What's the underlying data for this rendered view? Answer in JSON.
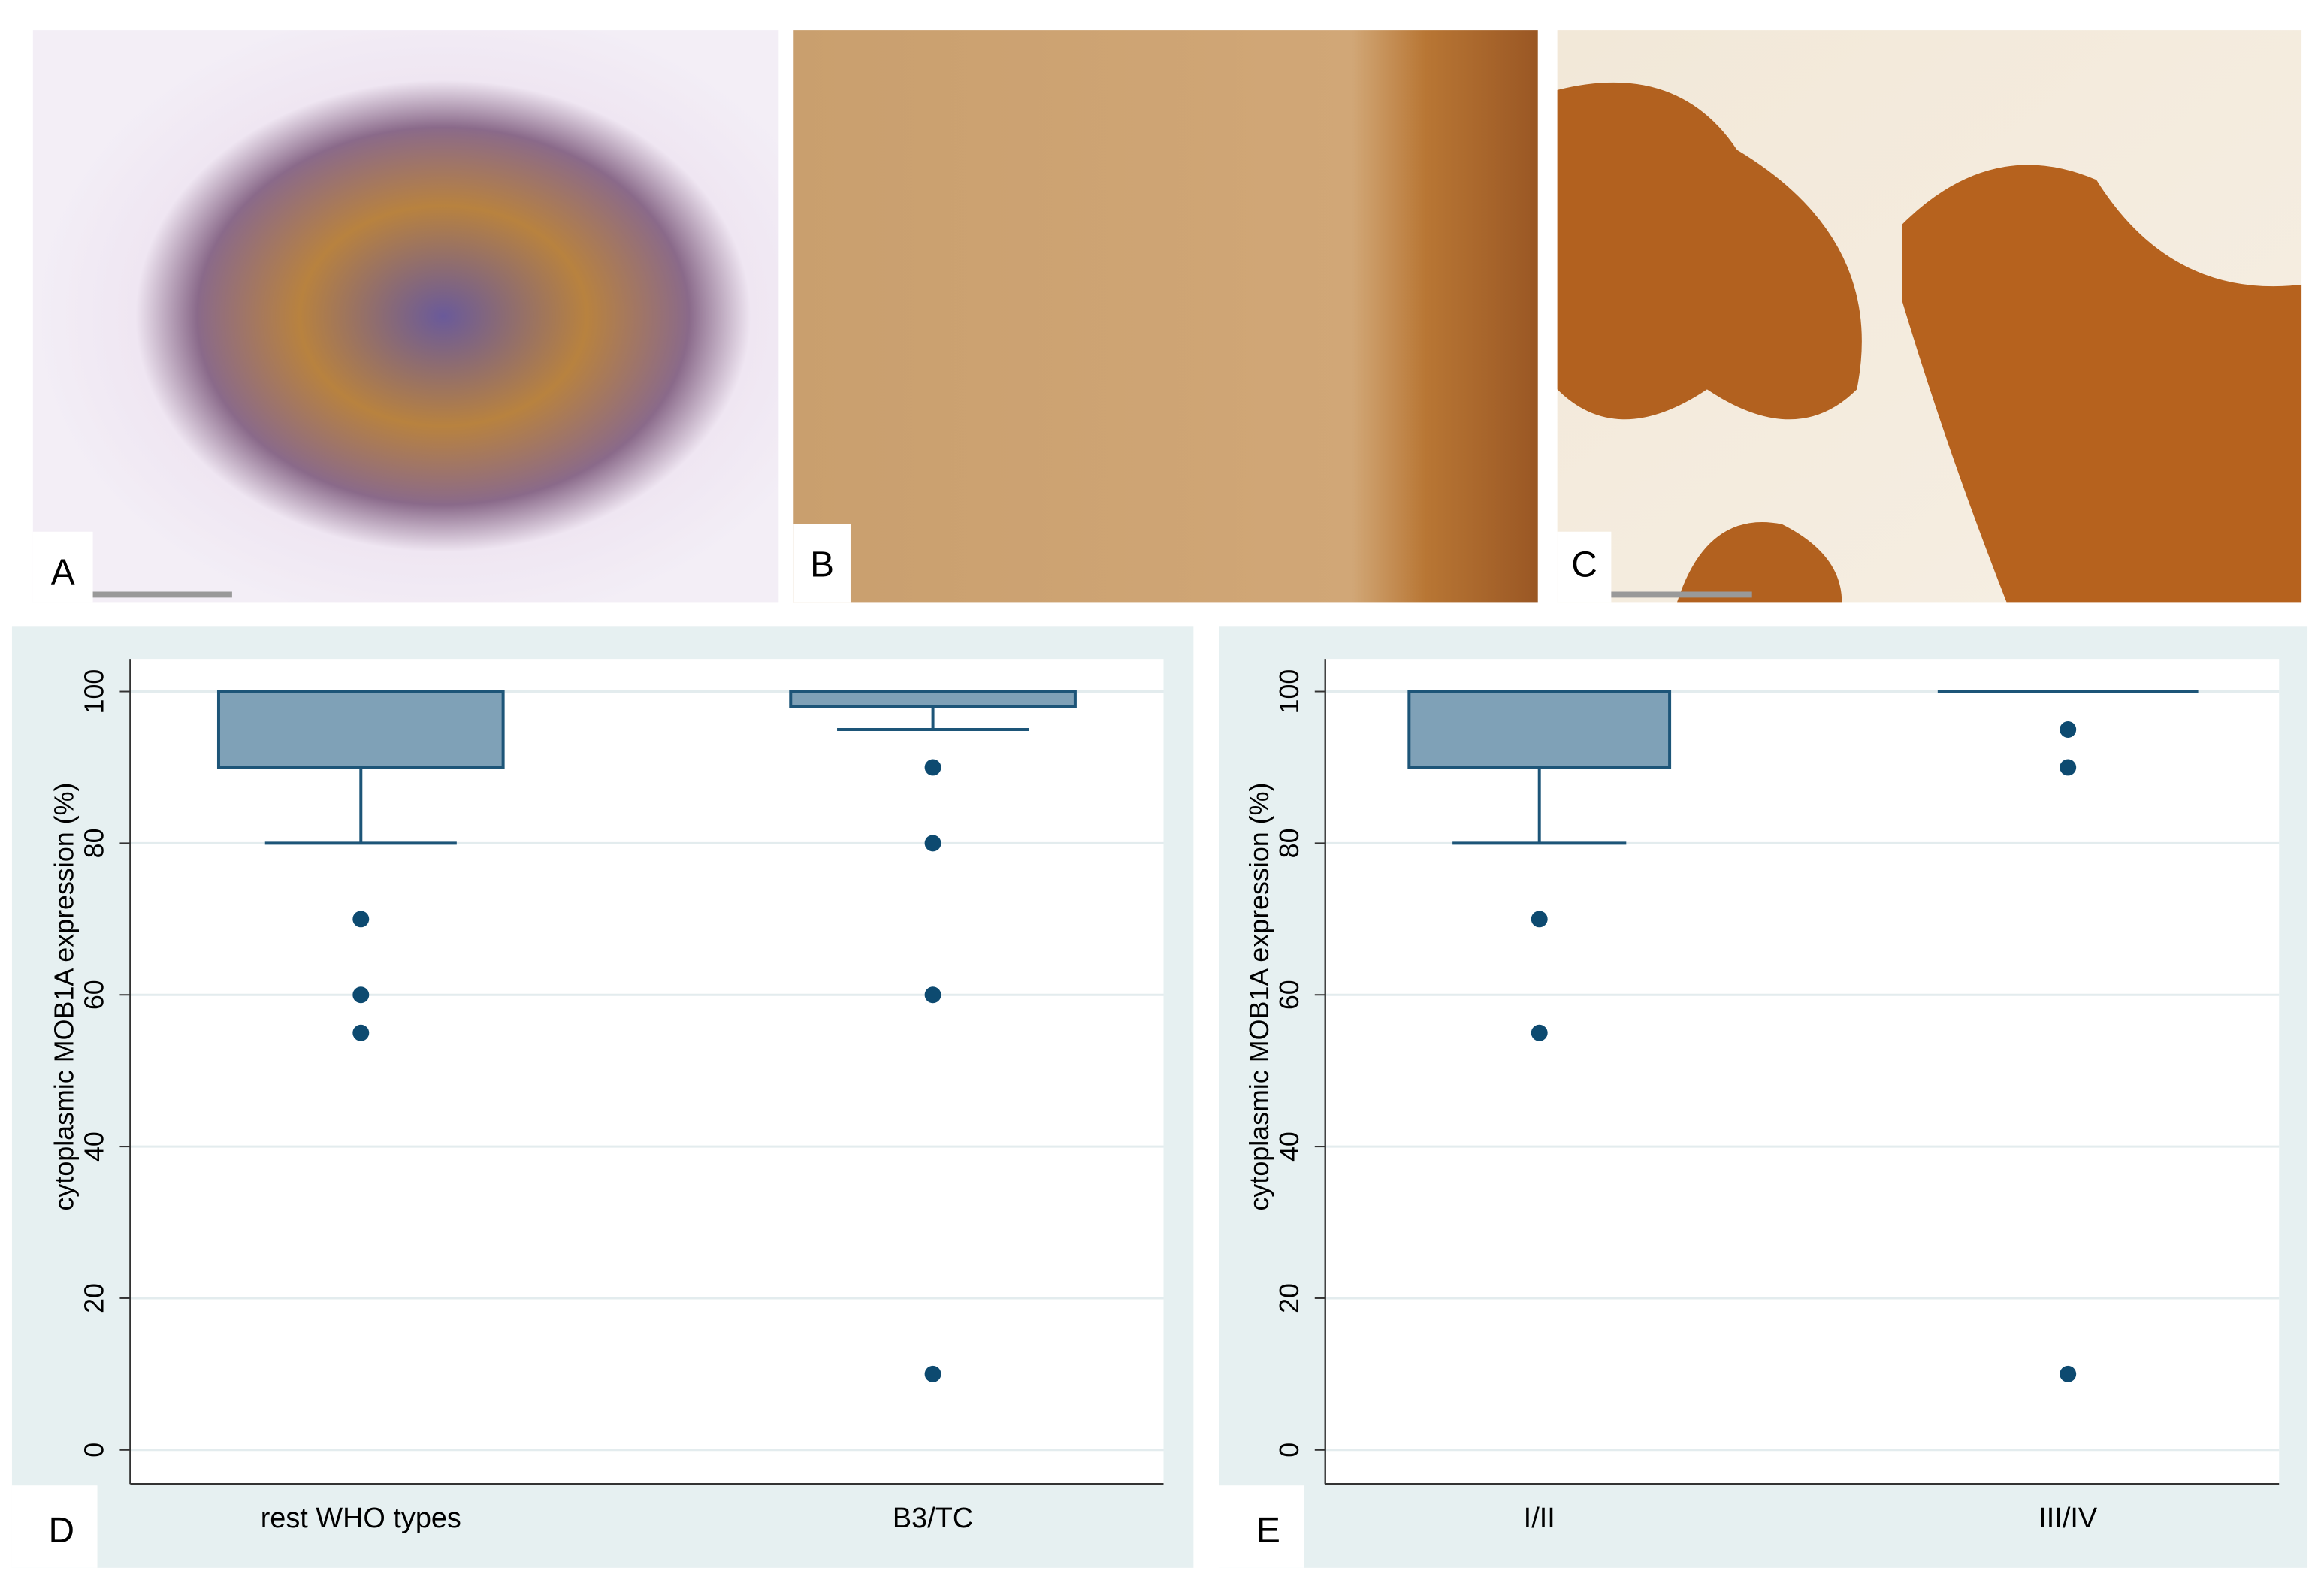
{
  "images": [
    {
      "label": "A"
    },
    {
      "label": "B"
    },
    {
      "label": "C"
    }
  ],
  "chart_data": [
    {
      "type": "box",
      "panel_label": "D",
      "ylabel": "cytoplasmic MOB1A expression (%)",
      "categories": [
        "rest WHO types",
        "B3/TC"
      ],
      "boxes": [
        {
          "whislo": 80,
          "q1": 90,
          "med": 100,
          "q3": 100,
          "whishi": 100,
          "fliers": [
            70,
            60,
            55
          ]
        },
        {
          "whislo": 95,
          "q1": 98,
          "med": 100,
          "q3": 100,
          "whishi": 100,
          "fliers": [
            90,
            80,
            60,
            10
          ]
        }
      ],
      "color": "#7fa1b7",
      "edge_color": "#1d5578",
      "flier_color": "#0d4a70",
      "ylim": [
        -4.5,
        104.3
      ],
      "yticks": [
        0,
        20,
        40,
        60,
        80,
        100
      ],
      "grid": true
    },
    {
      "type": "box",
      "panel_label": "E",
      "ylabel": "cytoplasmic MOB1A expression (%)",
      "categories": [
        "I/II",
        "III/IV"
      ],
      "boxes": [
        {
          "whislo": 80,
          "q1": 90,
          "med": 100,
          "q3": 100,
          "whishi": 100,
          "fliers": [
            70,
            55
          ]
        },
        {
          "whislo": 100,
          "q1": 100,
          "med": 100,
          "q3": 100,
          "whishi": 100,
          "fliers": [
            95,
            90,
            10
          ]
        }
      ],
      "color": "#7fa1b7",
      "edge_color": "#1d5578",
      "flier_color": "#0d4a70",
      "ylim": [
        -4.5,
        104.3
      ],
      "yticks": [
        0,
        20,
        40,
        60,
        80,
        100
      ],
      "grid": true
    }
  ]
}
